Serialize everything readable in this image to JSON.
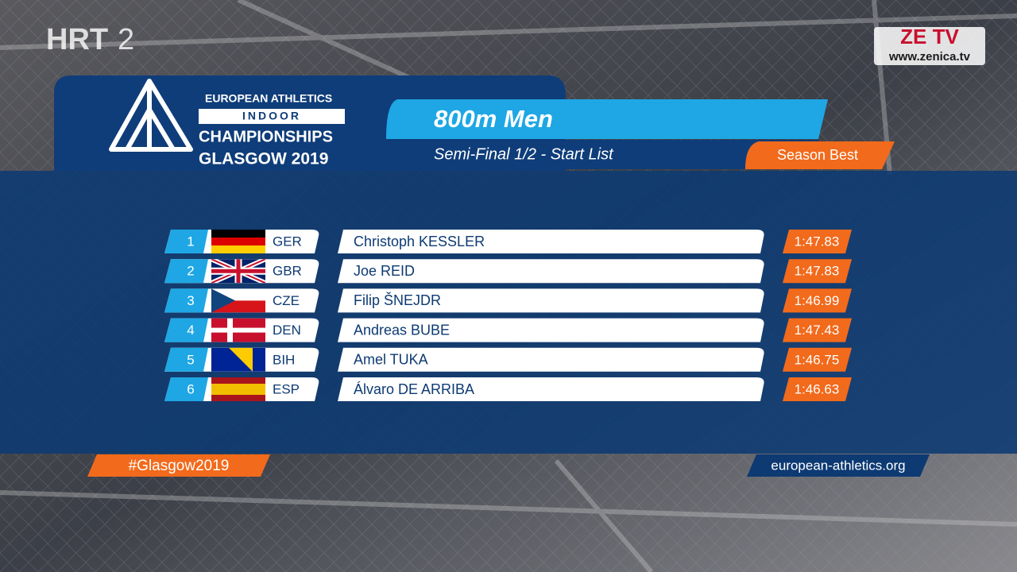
{
  "channel": {
    "name": "HRT",
    "number": "2"
  },
  "watermark": {
    "name": "ZE TV",
    "url": "www.zenica.tv"
  },
  "event_logo": {
    "organizer": "EUROPEAN ATHLETICS",
    "series": "INDOOR",
    "name": "CHAMPIONSHIPS",
    "place": "GLASGOW 2019"
  },
  "header": {
    "title": "800m Men",
    "subtitle": "Semi-Final 1/2 - Start List",
    "column": "Season Best"
  },
  "table": {
    "rows": [
      [
        1,
        "GER",
        "Christoph KESSLER",
        "1:47.83"
      ],
      [
        2,
        "GBR",
        "Joe REID",
        "1:47.83"
      ],
      [
        3,
        "CZE",
        "Filip ŠNEJDR",
        "1:46.99"
      ],
      [
        4,
        "DEN",
        "Andreas BUBE",
        "1:47.43"
      ],
      [
        5,
        "BIH",
        "Amel TUKA",
        "1:46.75"
      ],
      [
        6,
        "ESP",
        "Álvaro DE ARRIBA",
        "1:46.63"
      ]
    ]
  },
  "footer": {
    "hashtag": "#Glasgow2019",
    "website": "european-athletics.org"
  }
}
